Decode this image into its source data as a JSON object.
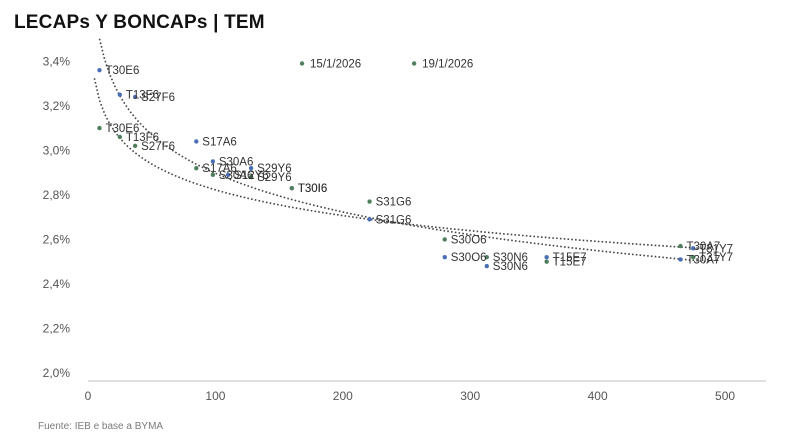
{
  "title": "LECAPs Y BONCAPs | TEM",
  "source": "Fuente: IEB e base a BYMA",
  "colors": {
    "series_a": "#4a6fb5",
    "series_b": "#4f7f5d",
    "trend": "#444444",
    "axis": "#bfbfbf"
  },
  "chart_data": {
    "type": "scatter",
    "title": "LECAPs Y BONCAPs | TEM",
    "xlabel": "",
    "ylabel": "",
    "xlim": [
      0,
      540
    ],
    "ylim": [
      2.0,
      3.5
    ],
    "x_ticks": [
      "0",
      "100",
      "200",
      "300",
      "400",
      "500"
    ],
    "y_ticks": [
      "2,0%",
      "2,2%",
      "2,4%",
      "2,6%",
      "2,8%",
      "3,0%",
      "3,2%",
      "3,4%"
    ],
    "grid": false,
    "annotations": [
      "15/1/2026",
      "19/1/2026"
    ],
    "annotation_points": [
      {
        "x": 168,
        "y": 3.39
      },
      {
        "x": 256,
        "y": 3.39
      }
    ],
    "series": [
      {
        "points": [
          {
            "x": 9,
            "y": 3.36,
            "label": "T30E6"
          },
          {
            "x": 25,
            "y": 3.25,
            "label": "T13F6"
          },
          {
            "x": 37,
            "y": 3.24,
            "label": "S27F6"
          },
          {
            "x": 85,
            "y": 3.04,
            "label": "S17A6"
          },
          {
            "x": 98,
            "y": 2.95,
            "label": "S30A6"
          },
          {
            "x": 110,
            "y": 2.89,
            "label": "S12Y6"
          },
          {
            "x": 128,
            "y": 2.92,
            "label": "S29Y6"
          },
          {
            "x": 160,
            "y": 2.83,
            "label": "T30I6"
          },
          {
            "x": 221,
            "y": 2.69,
            "label": "S31G6"
          },
          {
            "x": 280,
            "y": 2.52,
            "label": "S30O6"
          },
          {
            "x": 313,
            "y": 2.48,
            "label": "S30N6"
          },
          {
            "x": 360,
            "y": 2.52,
            "label": "T15E7"
          },
          {
            "x": 465,
            "y": 2.51,
            "label": "T30A7"
          },
          {
            "x": 475,
            "y": 2.56,
            "label": "T31Y7"
          }
        ]
      },
      {
        "points": [
          {
            "x": 9,
            "y": 3.1,
            "label": "T30E6"
          },
          {
            "x": 25,
            "y": 3.06,
            "label": "T13F6"
          },
          {
            "x": 37,
            "y": 3.02,
            "label": "S27F6"
          },
          {
            "x": 85,
            "y": 2.92,
            "label": "S17A6"
          },
          {
            "x": 98,
            "y": 2.89,
            "label": "S30A6"
          },
          {
            "x": 128,
            "y": 2.88,
            "label": "S29Y6"
          },
          {
            "x": 160,
            "y": 2.83,
            "label": "T30I6"
          },
          {
            "x": 221,
            "y": 2.77,
            "label": "S31G6"
          },
          {
            "x": 280,
            "y": 2.6,
            "label": "S30O6"
          },
          {
            "x": 313,
            "y": 2.52,
            "label": "S30N6"
          },
          {
            "x": 360,
            "y": 2.5,
            "label": "T15E7"
          },
          {
            "x": 465,
            "y": 2.57,
            "label": "T30A7"
          },
          {
            "x": 475,
            "y": 2.52,
            "label": "T31Y7"
          }
        ]
      }
    ]
  }
}
